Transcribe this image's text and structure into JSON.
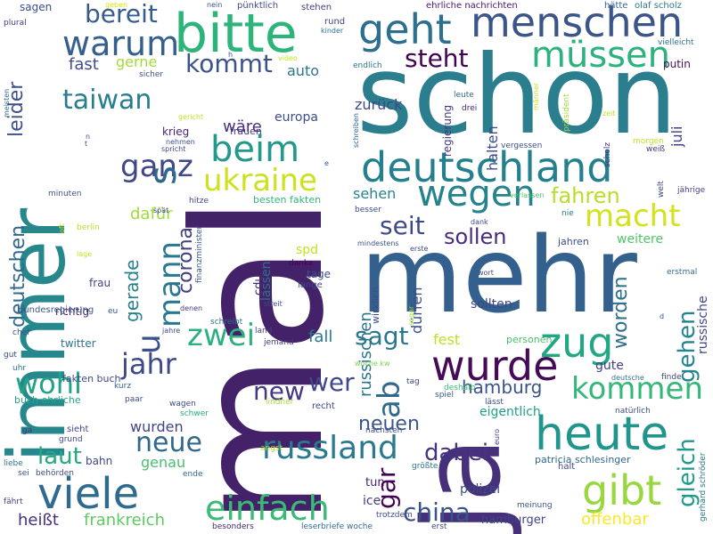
{
  "words": [
    {
      "text": "mal",
      "color": "#44226a",
      "vertical": true
    },
    {
      "text": "schon",
      "color": "#2a7e8e",
      "vertical": false
    },
    {
      "text": "immer",
      "color": "#26878c",
      "vertical": true
    },
    {
      "text": "mehr",
      "color": "#33608c",
      "vertical": false
    },
    {
      "text": "ja",
      "color": "#46307a",
      "vertical": true
    },
    {
      "text": "bitte",
      "color": "#2cb47b",
      "vertical": false
    },
    {
      "text": "menschen",
      "color": "#3b5589",
      "vertical": false
    },
    {
      "text": "geht",
      "color": "#2d6f8e",
      "vertical": false
    },
    {
      "text": "deutschland",
      "color": "#25808e",
      "vertical": false
    },
    {
      "text": "heute",
      "color": "#20958b",
      "vertical": false
    },
    {
      "text": "gibt",
      "color": "#98d83e",
      "vertical": false
    },
    {
      "text": "viele",
      "color": "#2f6b8e",
      "vertical": false
    },
    {
      "text": "wurde",
      "color": "#450b57",
      "vertical": false
    },
    {
      "text": "zug",
      "color": "#22a785",
      "vertical": false
    },
    {
      "text": "beim",
      "color": "#22998a",
      "vertical": false
    },
    {
      "text": "müssen",
      "color": "#2db27d",
      "vertical": false
    },
    {
      "text": "warum",
      "color": "#355f8d",
      "vertical": false
    },
    {
      "text": "wegen",
      "color": "#25838e",
      "vertical": false
    },
    {
      "text": "russland",
      "color": "#297a8e",
      "vertical": false
    },
    {
      "text": "einfach",
      "color": "#3bba75",
      "vertical": false
    },
    {
      "text": "kommen",
      "color": "#35b779",
      "vertical": false
    },
    {
      "text": "macht",
      "color": "#d2e21b",
      "vertical": false
    },
    {
      "text": "ukraine",
      "color": "#cde11d",
      "vertical": false
    },
    {
      "text": "ganz",
      "color": "#3f4788",
      "vertical": false
    },
    {
      "text": "zwei",
      "color": "#2cb17e",
      "vertical": false
    },
    {
      "text": "jahr",
      "color": "#3e4989",
      "vertical": false
    },
    {
      "text": "wohl",
      "color": "#20a386",
      "vertical": false
    },
    {
      "text": "neue",
      "color": "#31688e",
      "vertical": false
    },
    {
      "text": "laut",
      "color": "#23a983",
      "vertical": false
    },
    {
      "text": "taiwan",
      "color": "#287d8e",
      "vertical": false
    },
    {
      "text": "bereit",
      "color": "#365c8d",
      "vertical": false
    },
    {
      "text": "kommt",
      "color": "#3b528b",
      "vertical": false
    },
    {
      "text": "steht",
      "color": "#440154",
      "vertical": false
    },
    {
      "text": "sagt",
      "color": "#2a788e",
      "vertical": false
    },
    {
      "text": "wer",
      "color": "#3f4889",
      "vertical": false
    },
    {
      "text": "new",
      "color": "#443a83",
      "vertical": false
    },
    {
      "text": "china",
      "color": "#3b528b",
      "vertical": false
    },
    {
      "text": "dabei",
      "color": "#46337f",
      "vertical": false
    },
    {
      "text": "seit",
      "color": "#3e4a89",
      "vertical": false
    },
    {
      "text": "sollen",
      "color": "#472d7b",
      "vertical": false
    },
    {
      "text": "fahren",
      "color": "#b8de29",
      "vertical": false
    },
    {
      "text": "hamburg",
      "color": "#3b528b",
      "vertical": false
    },
    {
      "text": "neuen",
      "color": "#39568c",
      "vertical": false
    },
    {
      "text": "frankreich",
      "color": "#5ec962",
      "vertical": false
    },
    {
      "text": "offenbar",
      "color": "#fde725",
      "vertical": false
    },
    {
      "text": "heißt",
      "color": "#472f7d",
      "vertical": false
    },
    {
      "text": "fast",
      "color": "#3e4c8a",
      "vertical": false
    },
    {
      "text": "gerne",
      "color": "#a5db36",
      "vertical": false
    },
    {
      "text": "auto",
      "color": "#2a788e",
      "vertical": false
    },
    {
      "text": "dafür",
      "color": "#a0da39",
      "vertical": false
    },
    {
      "text": "wäre",
      "color": "#46327e",
      "vertical": false
    },
    {
      "text": "europa",
      "color": "#3d4d8a",
      "vertical": false
    },
    {
      "text": "fall",
      "color": "#29798e",
      "vertical": false
    },
    {
      "text": "fest",
      "color": "#c2df23",
      "vertical": false
    },
    {
      "text": "wurden",
      "color": "#414487",
      "vertical": false
    },
    {
      "text": "genau",
      "color": "#46c06f",
      "vertical": false
    },
    {
      "text": "sehen",
      "color": "#25848e",
      "vertical": false
    },
    {
      "text": "zurück",
      "color": "#3f4788",
      "vertical": false
    },
    {
      "text": "eigentlich",
      "color": "#1f9e89",
      "vertical": false
    },
    {
      "text": "gute",
      "color": "#433e85",
      "vertical": false
    },
    {
      "text": "polizei",
      "color": "#3e4989",
      "vertical": false
    },
    {
      "text": "ice",
      "color": "#433e85",
      "vertical": false
    },
    {
      "text": "hamburger",
      "color": "#414487",
      "vertical": false
    },
    {
      "text": "tun",
      "color": "#482374",
      "vertical": false
    },
    {
      "text": "patricia schlesinger",
      "color": "#31688e",
      "vertical": false
    },
    {
      "text": "twitter",
      "color": "#2c728e",
      "vertical": false
    },
    {
      "text": "richtig",
      "color": "#481f70",
      "vertical": false
    },
    {
      "text": "frau",
      "color": "#404588",
      "vertical": false
    },
    {
      "text": "bahn",
      "color": "#404688",
      "vertical": false
    },
    {
      "text": "sagen",
      "color": "#3e4a89",
      "vertical": false
    },
    {
      "text": "krieg",
      "color": "#482475",
      "vertical": false
    },
    {
      "text": "frauen",
      "color": "#453781",
      "vertical": false
    },
    {
      "text": "putin",
      "color": "#471063",
      "vertical": false
    },
    {
      "text": "halten",
      "color": "#3e4a89",
      "vertical": true
    },
    {
      "text": "russischen",
      "color": "#2b748e",
      "vertical": true
    },
    {
      "text": "dürfen",
      "color": "#3d4d8a",
      "vertical": true
    },
    {
      "text": "worden",
      "color": "#2e6e8e",
      "vertical": true
    },
    {
      "text": "gehen",
      "color": "#25848e",
      "vertical": true
    },
    {
      "text": "gleich",
      "color": "#1e9b8a",
      "vertical": true
    },
    {
      "text": "gar",
      "color": "#440154",
      "vertical": true
    },
    {
      "text": "ab",
      "color": "#31688e",
      "vertical": true
    },
    {
      "text": "s",
      "color": "#31688e",
      "vertical": true
    },
    {
      "text": "u",
      "color": "#3b528b",
      "vertical": true
    },
    {
      "text": "mann",
      "color": "#2a788e",
      "vertical": true
    },
    {
      "text": "corona",
      "color": "#424086",
      "vertical": true
    },
    {
      "text": "gerade",
      "color": "#27808e",
      "vertical": true
    },
    {
      "text": "deutschen",
      "color": "#31688e",
      "vertical": true
    },
    {
      "text": "leider",
      "color": "#3d4e8a",
      "vertical": true
    },
    {
      "text": "lassen",
      "color": "#2c728e",
      "vertical": true
    },
    {
      "text": "cdu",
      "color": "#472c7a",
      "vertical": true
    },
    {
      "text": "juli",
      "color": "#424086",
      "vertical": true
    },
    {
      "text": "russische",
      "color": "#3f4788",
      "vertical": true
    },
    {
      "text": "regierung",
      "color": "#453781",
      "vertical": true
    },
    {
      "text": "wirklich",
      "color": "#3d4e8a",
      "vertical": true
    },
    {
      "text": "spd",
      "color": "#c8e020",
      "vertical": false
    },
    {
      "text": "tage",
      "color": "#3d4e8a",
      "vertical": false
    },
    {
      "text": "lange",
      "color": "#3f4889",
      "vertical": false
    },
    {
      "text": "danke",
      "color": "#440154",
      "vertical": false
    },
    {
      "text": "sollten",
      "color": "#404588",
      "vertical": false
    },
    {
      "text": "weitere",
      "color": "#50c46a",
      "vertical": false
    },
    {
      "text": "jahren",
      "color": "#3d4e8a",
      "vertical": false
    },
    {
      "text": "personen",
      "color": "#46c06f",
      "vertical": false
    },
    {
      "text": "besten fakten",
      "color": "#34b679",
      "vertical": false
    },
    {
      "text": "fakten buch",
      "color": "#3e4989",
      "vertical": false
    },
    {
      "text": "buch ehrliche",
      "color": "#22a785",
      "vertical": false
    },
    {
      "text": "ehrliche nachrichten",
      "color": "#481668",
      "vertical": false
    },
    {
      "text": "leserbriefe woche",
      "color": "#2e6f8e",
      "vertical": false
    },
    {
      "text": "olaf scholz",
      "color": "#2a778e",
      "vertical": false
    },
    {
      "text": "gerhard schröder",
      "color": "#2a788e",
      "vertical": true
    },
    {
      "text": "bundesregierung",
      "color": "#39568c",
      "vertical": false
    },
    {
      "text": "finanzminister",
      "color": "#38598c",
      "vertical": true
    },
    {
      "text": "pünktlich",
      "color": "#3e4a89",
      "vertical": false
    },
    {
      "text": "stehen",
      "color": "#433d84",
      "vertical": false
    },
    {
      "text": "rund",
      "color": "#404688",
      "vertical": false
    },
    {
      "text": "kinder",
      "color": "#2d718e",
      "vertical": false
    },
    {
      "text": "hätte",
      "color": "#31688e",
      "vertical": false
    },
    {
      "text": "vielleicht",
      "color": "#2d718e",
      "vertical": false
    },
    {
      "text": "video",
      "color": "#cde11d",
      "vertical": false
    },
    {
      "text": "endlich",
      "color": "#2a768e",
      "vertical": false
    },
    {
      "text": "männer",
      "color": "#c2df23",
      "vertical": true
    },
    {
      "text": "präsident",
      "color": "#a8db34",
      "vertical": true
    },
    {
      "text": "zeit",
      "color": "#bddf26",
      "vertical": false
    },
    {
      "text": "morgen",
      "color": "#c5e021",
      "vertical": false
    },
    {
      "text": "weiß",
      "color": "#453882",
      "vertical": false
    },
    {
      "text": "jährige",
      "color": "#414487",
      "vertical": false
    },
    {
      "text": "welt",
      "color": "#414487",
      "vertical": true
    },
    {
      "text": "scholz",
      "color": "#453781",
      "vertical": true
    },
    {
      "text": "erstmal",
      "color": "#2c718e",
      "vertical": false
    },
    {
      "text": "drei",
      "color": "#482677",
      "vertical": false
    },
    {
      "text": "leute",
      "color": "#33638d",
      "vertical": false
    },
    {
      "text": "schreiben",
      "color": "#31688e",
      "vertical": true
    },
    {
      "text": "vergessen",
      "color": "#3b518b",
      "vertical": false
    },
    {
      "text": "verlassen",
      "color": "#52c569",
      "vertical": false
    },
    {
      "text": "nie",
      "color": "#277f8e",
      "vertical": false
    },
    {
      "text": "dank",
      "color": "#3e4a89",
      "vertical": false
    },
    {
      "text": "besser",
      "color": "#3d4d8a",
      "vertical": false
    },
    {
      "text": "mindestens",
      "color": "#3b528b",
      "vertical": false
    },
    {
      "text": "erste",
      "color": "#3f4788",
      "vertical": false
    },
    {
      "text": "wort",
      "color": "#3e4989",
      "vertical": false
    },
    {
      "text": "sogar",
      "color": "#a2da37",
      "vertical": true
    },
    {
      "text": "streit",
      "color": "#3d4d8a",
      "vertical": false
    },
    {
      "text": "land",
      "color": "#433d84",
      "vertical": false
    },
    {
      "text": "jemand",
      "color": "#453882",
      "vertical": false
    },
    {
      "text": "schreibt",
      "color": "#2c728e",
      "vertical": false
    },
    {
      "text": "denen",
      "color": "#453781",
      "vertical": false
    },
    {
      "text": "woche kw",
      "color": "#7ad151",
      "vertical": false
    },
    {
      "text": "spiel",
      "color": "#39558c",
      "vertical": false
    },
    {
      "text": "deshalb",
      "color": "#3bbb75",
      "vertical": false
    },
    {
      "text": "lässt",
      "color": "#3d4d8a",
      "vertical": false
    },
    {
      "text": "deutsche",
      "color": "#2c728e",
      "vertical": false
    },
    {
      "text": "finde",
      "color": "#404688",
      "vertical": false
    },
    {
      "text": "natürlich",
      "color": "#3b528b",
      "vertical": false
    },
    {
      "text": "halt",
      "color": "#404688",
      "vertical": false
    },
    {
      "text": "recht",
      "color": "#3f4788",
      "vertical": false
    },
    {
      "text": "lindner",
      "color": "#a8db34",
      "vertical": false
    },
    {
      "text": "nächsten",
      "color": "#3e4989",
      "vertical": false
    },
    {
      "text": "größte",
      "color": "#2c738e",
      "vertical": false
    },
    {
      "text": "euro",
      "color": "#433e85",
      "vertical": true
    },
    {
      "text": "trotzdem",
      "color": "#3e4989",
      "vertical": false
    },
    {
      "text": "erst",
      "color": "#3e4989",
      "vertical": false
    },
    {
      "text": "meinung",
      "color": "#39568c",
      "vertical": false
    },
    {
      "text": "angst",
      "color": "#b0dd2f",
      "vertical": false
    },
    {
      "text": "besonders",
      "color": "#482677",
      "vertical": false
    },
    {
      "text": "sieht",
      "color": "#3f4788",
      "vertical": false
    },
    {
      "text": "grund",
      "color": "#414487",
      "vertical": false
    },
    {
      "text": "kurz",
      "color": "#32658e",
      "vertical": false
    },
    {
      "text": "paar",
      "color": "#3e4989",
      "vertical": false
    },
    {
      "text": "wagen",
      "color": "#3e4989",
      "vertical": false
    },
    {
      "text": "schwer",
      "color": "#26ad81",
      "vertical": false
    },
    {
      "text": "ende",
      "color": "#33638d",
      "vertical": false
    },
    {
      "text": "gut",
      "color": "#3e4989",
      "vertical": false
    },
    {
      "text": "uhr",
      "color": "#2c728e",
      "vertical": false
    },
    {
      "text": "chef",
      "color": "#3a548c",
      "vertical": false
    },
    {
      "text": "jahre",
      "color": "#3e4989",
      "vertical": false
    },
    {
      "text": "eu",
      "color": "#39568c",
      "vertical": false
    },
    {
      "text": "ga",
      "color": "#453781",
      "vertical": false
    },
    {
      "text": "liebe",
      "color": "#2a788e",
      "vertical": false
    },
    {
      "text": "sei",
      "color": "#3b528b",
      "vertical": false
    },
    {
      "text": "fährt",
      "color": "#404688",
      "vertical": false
    },
    {
      "text": "behörden",
      "color": "#3e4989",
      "vertical": false
    },
    {
      "text": "berlin",
      "color": "#bddf26",
      "vertical": false
    },
    {
      "text": "lage",
      "color": "#c2df23",
      "vertical": false
    },
    {
      "text": "spät",
      "color": "#3f4788",
      "vertical": false
    },
    {
      "text": "hitze",
      "color": "#3e4989",
      "vertical": false
    },
    {
      "text": "minuten",
      "color": "#3b528b",
      "vertical": false
    },
    {
      "text": "oft",
      "color": "#c2df23",
      "vertical": true
    },
    {
      "text": "plural",
      "color": "#453882",
      "vertical": false
    },
    {
      "text": "meisten",
      "color": "#31688e",
      "vertical": true
    },
    {
      "text": "geben",
      "color": "#d2e21b",
      "vertical": false
    },
    {
      "text": "nein",
      "color": "#3d4e8a",
      "vertical": false
    },
    {
      "text": "sicher",
      "color": "#3b518b",
      "vertical": false
    },
    {
      "text": "gericht",
      "color": "#c2df23",
      "vertical": false
    },
    {
      "text": "nehmen",
      "color": "#3d4d8a",
      "vertical": false
    },
    {
      "text": "spricht",
      "color": "#3f4788",
      "vertical": false
    },
    {
      "text": "tag",
      "color": "#3e4989",
      "vertical": false
    },
    {
      "text": "h",
      "color": "#3b528b",
      "vertical": false
    },
    {
      "text": "d",
      "color": "#3b528b",
      "vertical": false
    },
    {
      "text": "e",
      "color": "#3b528b",
      "vertical": false
    },
    {
      "text": "t",
      "color": "#3b528b",
      "vertical": false
    },
    {
      "text": "n",
      "color": "#3b528b",
      "vertical": false
    }
  ]
}
